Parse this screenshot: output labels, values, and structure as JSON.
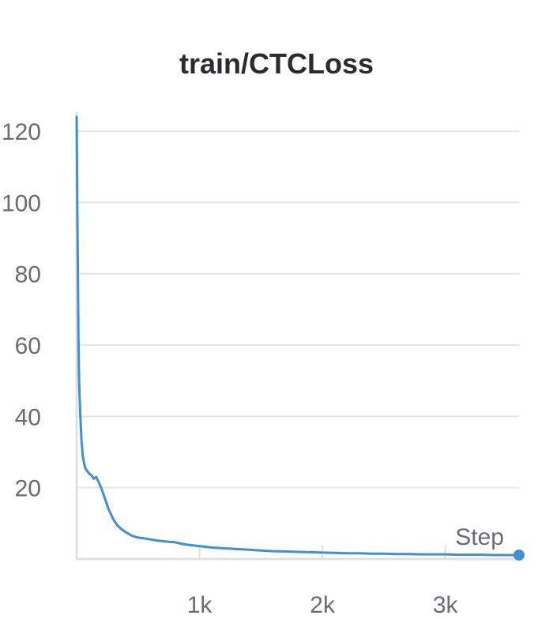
{
  "chart_data": {
    "type": "line",
    "title": "train/CTCLoss",
    "xlabel": "Step",
    "ylabel": "",
    "xlim": [
      0,
      3600
    ],
    "ylim": [
      0,
      124
    ],
    "x_ticks": [
      {
        "value": 1000,
        "label": "1k"
      },
      {
        "value": 2000,
        "label": "2k"
      },
      {
        "value": 3000,
        "label": "3k"
      }
    ],
    "y_ticks": [
      {
        "value": 20,
        "label": "20"
      },
      {
        "value": 40,
        "label": "40"
      },
      {
        "value": 60,
        "label": "60"
      },
      {
        "value": 80,
        "label": "80"
      },
      {
        "value": 100,
        "label": "100"
      },
      {
        "value": 120,
        "label": "120"
      }
    ],
    "grid": true,
    "series": [
      {
        "color": "#3f8fd9",
        "x": [
          0,
          5,
          10,
          15,
          20,
          30,
          40,
          50,
          60,
          70,
          80,
          100,
          120,
          140,
          160,
          180,
          200,
          220,
          240,
          260,
          280,
          300,
          330,
          360,
          400,
          450,
          500,
          550,
          600,
          650,
          700,
          750,
          800,
          850,
          900,
          950,
          1000,
          1050,
          1100,
          1150,
          1200,
          1250,
          1300,
          1350,
          1400,
          1450,
          1500,
          1600,
          1700,
          1800,
          1900,
          2000,
          2100,
          2200,
          2300,
          2400,
          2500,
          2600,
          2700,
          2800,
          2900,
          3000,
          3100,
          3200,
          3300,
          3400,
          3500,
          3600
        ],
        "values": [
          124,
          100,
          80,
          62,
          50,
          40,
          33,
          29,
          27,
          25.5,
          25,
          24,
          23.5,
          22.5,
          23,
          21.5,
          20,
          18,
          16,
          14,
          12.5,
          11,
          9.5,
          8.5,
          7.5,
          6.5,
          6,
          5.8,
          5.5,
          5.2,
          5,
          4.8,
          4.7,
          4.3,
          4,
          3.8,
          3.6,
          3.4,
          3.2,
          3.1,
          3,
          2.9,
          2.8,
          2.7,
          2.6,
          2.5,
          2.4,
          2.2,
          2.1,
          2,
          1.9,
          1.8,
          1.7,
          1.6,
          1.6,
          1.5,
          1.5,
          1.4,
          1.4,
          1.3,
          1.3,
          1.3,
          1.2,
          1.2,
          1.2,
          1.1,
          1.1,
          1.1
        ]
      }
    ]
  }
}
